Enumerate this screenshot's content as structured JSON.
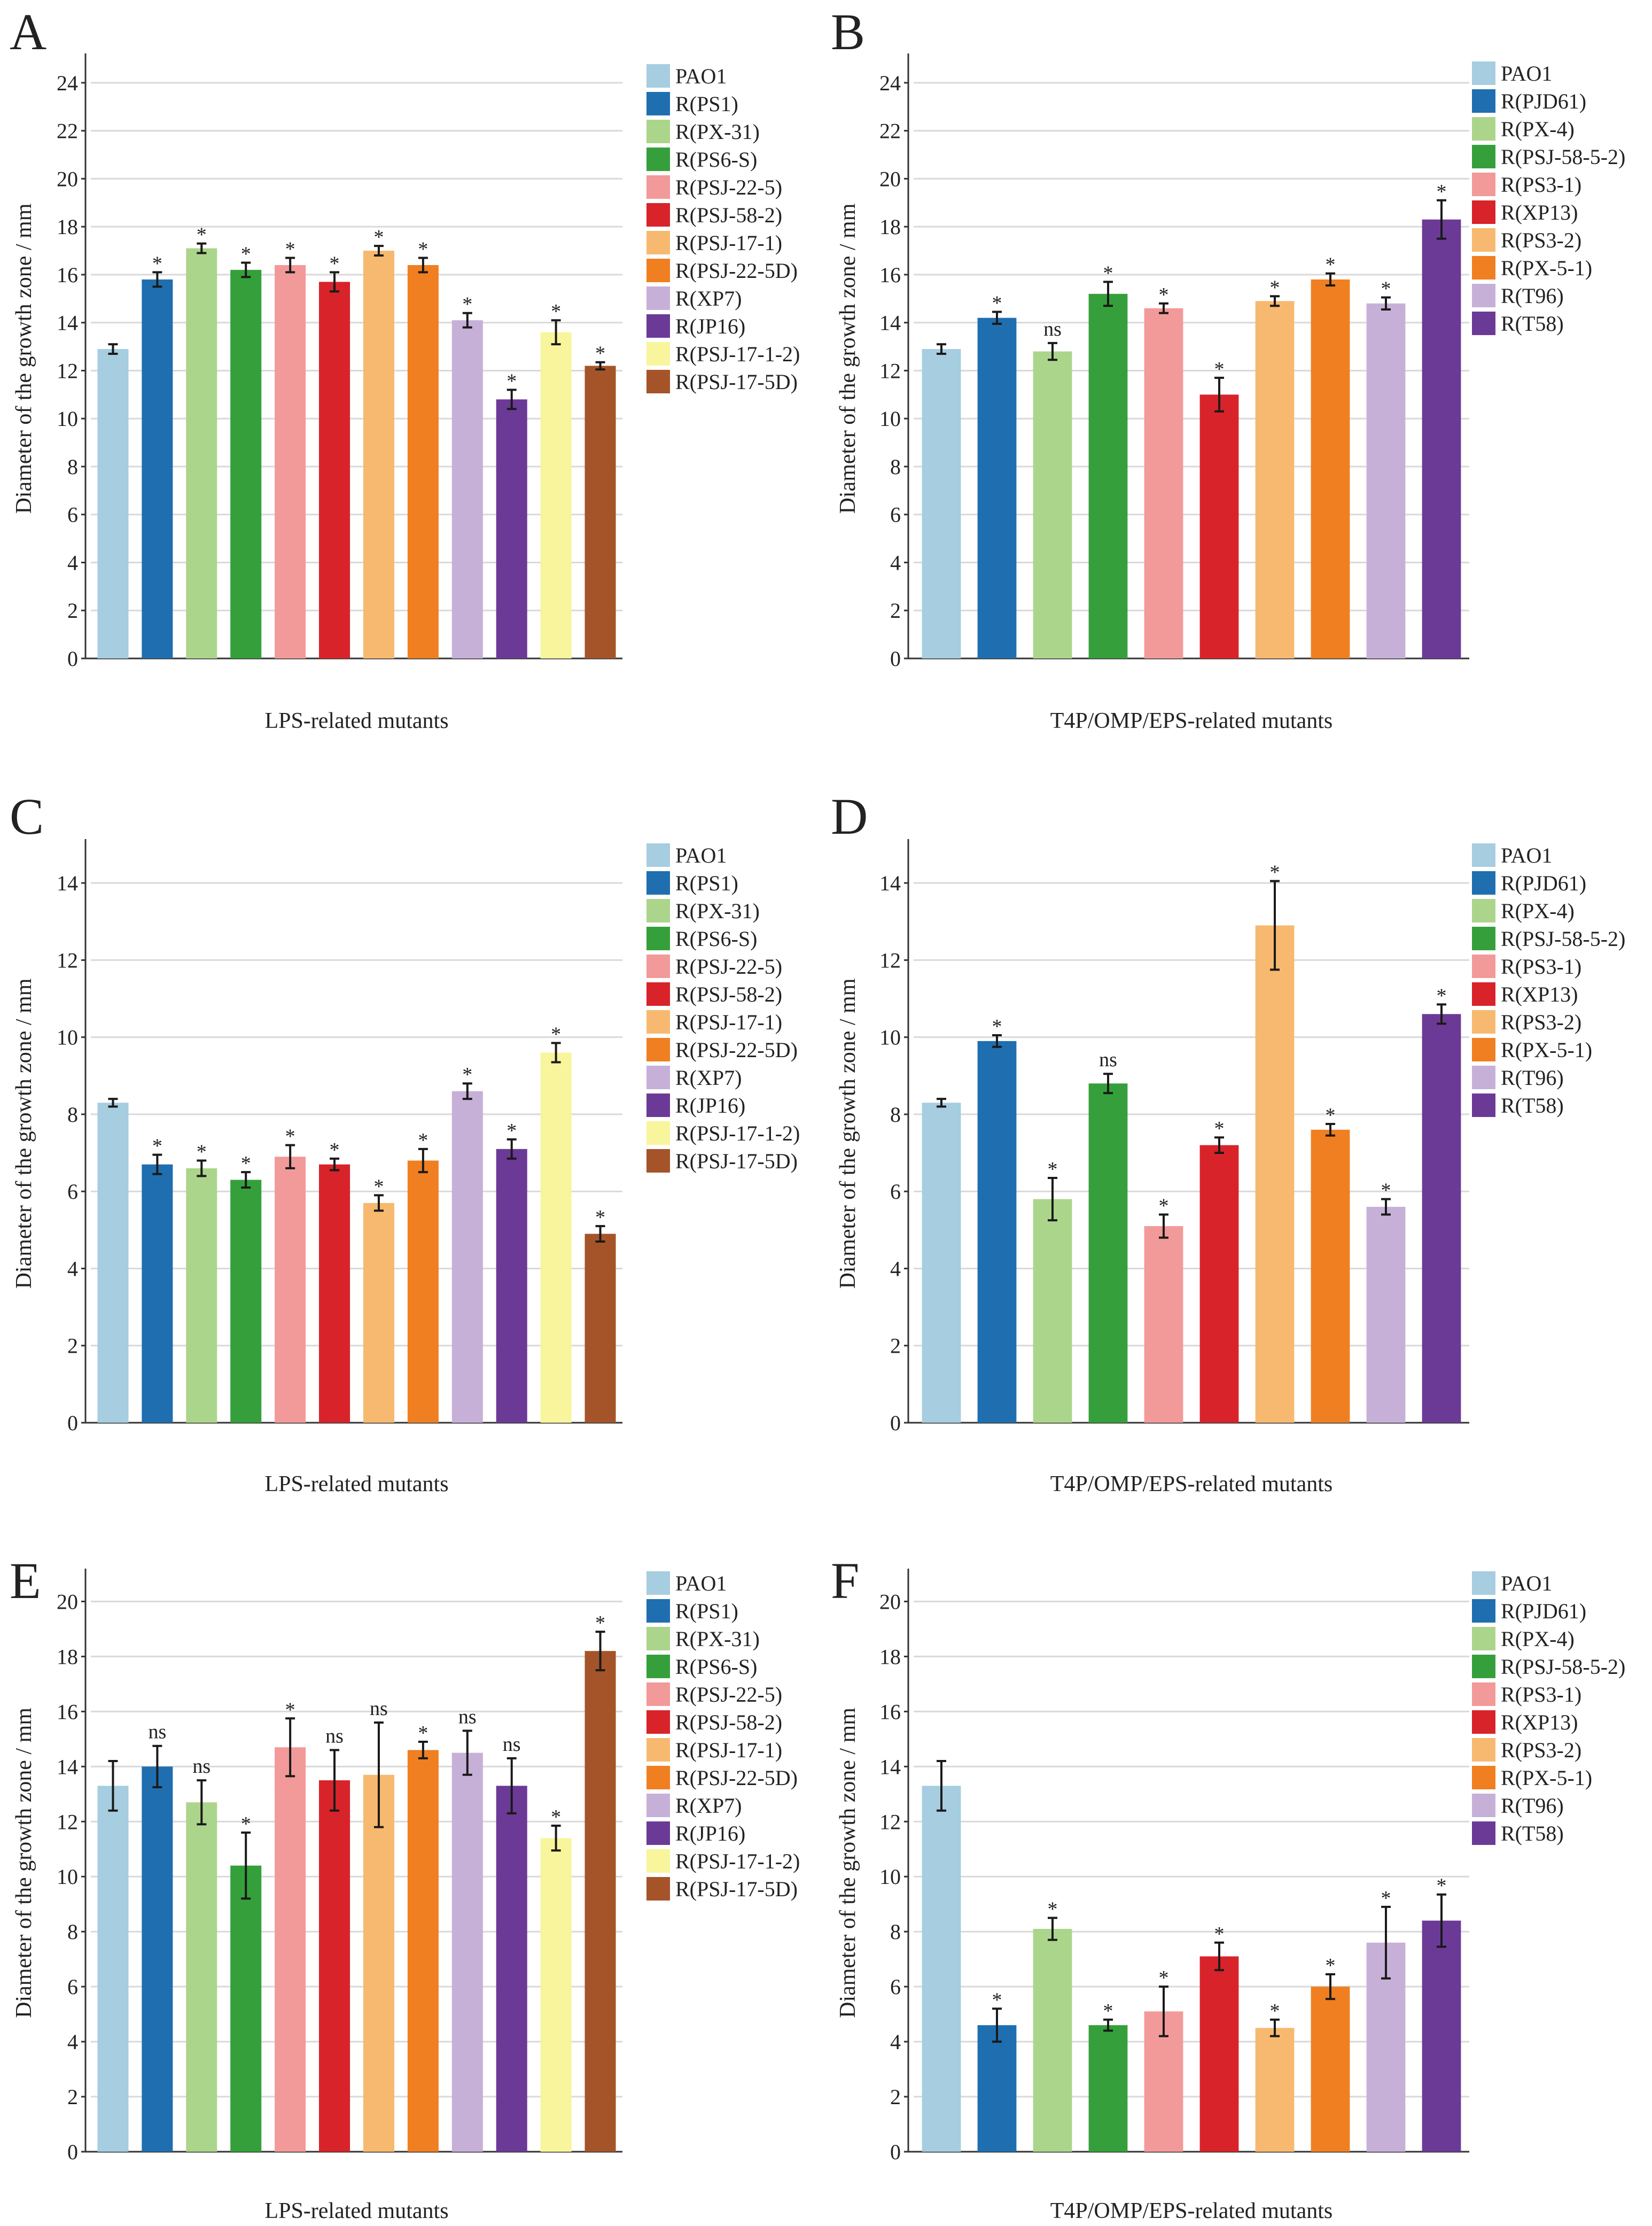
{
  "series_names": {
    "lps": [
      "PAO1",
      "R(PS1)",
      "R(PX-31)",
      "R(PS6-S)",
      "R(PSJ-22-5)",
      "R(PSJ-58-2)",
      "R(PSJ-17-1)",
      "R(PSJ-22-5D)",
      "R(XP7)",
      "R(JP16)",
      "R(PSJ-17-1-2)",
      "R(PSJ-17-5D)"
    ],
    "t4p": [
      "PAO1",
      "R(PJD61)",
      "R(PX-4)",
      "R(PSJ-58-5-2)",
      "R(PS3-1)",
      "R(XP13)",
      "R(PS3-2)",
      "R(PX-5-1)",
      "R(T96)",
      "R(T58)"
    ]
  },
  "colors": {
    "lps": [
      "#a6cde0",
      "#1f6fb0",
      "#acd58c",
      "#35a03b",
      "#f29a99",
      "#d8232a",
      "#f7b96f",
      "#f07f21",
      "#c7b0d8",
      "#6b3a96",
      "#f8f59c",
      "#a5542a"
    ],
    "t4p": [
      "#a6cde0",
      "#1f6fb0",
      "#acd58c",
      "#35a03b",
      "#f29a99",
      "#d8232a",
      "#f7b96f",
      "#f07f21",
      "#c7b0d8",
      "#6b3a96"
    ]
  },
  "chart_data": [
    {
      "type": "bar",
      "panel": "A",
      "group": "lps",
      "title": "",
      "xlabel": "LPS-related mutants",
      "ylabel": "Diameter of the growth zone / mm",
      "ylim": [
        0,
        25
      ],
      "yticks": [
        0,
        2,
        4,
        6,
        8,
        10,
        12,
        14,
        16,
        18,
        20,
        22,
        24
      ],
      "categories": [
        "PAO1",
        "R(PS1)",
        "R(PX-31)",
        "R(PS6-S)",
        "R(PSJ-22-5)",
        "R(PSJ-58-2)",
        "R(PSJ-17-1)",
        "R(PSJ-22-5D)",
        "R(XP7)",
        "R(JP16)",
        "R(PSJ-17-1-2)",
        "R(PSJ-17-5D)"
      ],
      "values": [
        12.9,
        15.8,
        17.1,
        16.2,
        16.4,
        15.7,
        17.0,
        16.4,
        14.1,
        10.8,
        13.6,
        12.2
      ],
      "errors": [
        0.2,
        0.3,
        0.2,
        0.3,
        0.3,
        0.4,
        0.2,
        0.3,
        0.3,
        0.4,
        0.5,
        0.15
      ],
      "significance": [
        "",
        "*",
        "*",
        "*",
        "*",
        "*",
        "*",
        "*",
        "*",
        "*",
        "*",
        "*"
      ]
    },
    {
      "type": "bar",
      "panel": "B",
      "group": "t4p",
      "title": "",
      "xlabel": "T4P/OMP/EPS-related mutants",
      "ylabel": "Diameter of the growth zone / mm",
      "ylim": [
        0,
        25
      ],
      "yticks": [
        0,
        2,
        4,
        6,
        8,
        10,
        12,
        14,
        16,
        18,
        20,
        22,
        24
      ],
      "categories": [
        "PAO1",
        "R(PJD61)",
        "R(PX-4)",
        "R(PSJ-58-5-2)",
        "R(PS3-1)",
        "R(XP13)",
        "R(PS3-2)",
        "R(PX-5-1)",
        "R(T96)",
        "R(T58)"
      ],
      "values": [
        12.9,
        14.2,
        12.8,
        15.2,
        14.6,
        11.0,
        14.9,
        15.8,
        14.8,
        18.3
      ],
      "errors": [
        0.2,
        0.25,
        0.35,
        0.5,
        0.2,
        0.7,
        0.2,
        0.25,
        0.25,
        0.8
      ],
      "significance": [
        "",
        "*",
        "ns",
        "*",
        "*",
        "*",
        "*",
        "*",
        "*",
        "*"
      ]
    },
    {
      "type": "bar",
      "panel": "C",
      "group": "lps",
      "title": "",
      "xlabel": "LPS-related mutants",
      "ylabel": "Diameter of the growth zone / mm",
      "ylim": [
        0,
        15
      ],
      "yticks": [
        0,
        2,
        4,
        6,
        8,
        10,
        12,
        14
      ],
      "categories": [
        "PAO1",
        "R(PS1)",
        "R(PX-31)",
        "R(PS6-S)",
        "R(PSJ-22-5)",
        "R(PSJ-58-2)",
        "R(PSJ-17-1)",
        "R(PSJ-22-5D)",
        "R(XP7)",
        "R(JP16)",
        "R(PSJ-17-1-2)",
        "R(PSJ-17-5D)"
      ],
      "values": [
        8.3,
        6.7,
        6.6,
        6.3,
        6.9,
        6.7,
        5.7,
        6.8,
        8.6,
        7.1,
        9.6,
        4.9
      ],
      "errors": [
        0.1,
        0.25,
        0.2,
        0.2,
        0.3,
        0.15,
        0.2,
        0.3,
        0.2,
        0.25,
        0.25,
        0.2
      ],
      "significance": [
        "",
        "*",
        "*",
        "*",
        "*",
        "*",
        "*",
        "*",
        "*",
        "*",
        "*",
        "*"
      ]
    },
    {
      "type": "bar",
      "panel": "D",
      "group": "t4p",
      "title": "",
      "xlabel": "T4P/OMP/EPS-related mutants",
      "ylabel": "Diameter of the growth zone / mm",
      "ylim": [
        0,
        15
      ],
      "yticks": [
        0,
        2,
        4,
        6,
        8,
        10,
        12,
        14
      ],
      "categories": [
        "PAO1",
        "R(PJD61)",
        "R(PX-4)",
        "R(PSJ-58-5-2)",
        "R(PS3-1)",
        "R(XP13)",
        "R(PS3-2)",
        "R(PX-5-1)",
        "R(T96)",
        "R(T58)"
      ],
      "values": [
        8.3,
        9.9,
        5.8,
        8.8,
        5.1,
        7.2,
        12.9,
        7.6,
        5.6,
        10.6
      ],
      "errors": [
        0.1,
        0.15,
        0.55,
        0.25,
        0.3,
        0.2,
        1.15,
        0.15,
        0.2,
        0.25
      ],
      "significance": [
        "",
        "*",
        "*",
        "ns",
        "*",
        "*",
        "*",
        "*",
        "*",
        "*"
      ]
    },
    {
      "type": "bar",
      "panel": "E",
      "group": "lps",
      "title": "",
      "xlabel": "LPS-related mutants",
      "ylabel": "Diameter of the growth zone / mm",
      "ylim": [
        0,
        21
      ],
      "yticks": [
        0,
        2,
        4,
        6,
        8,
        10,
        12,
        14,
        16,
        18,
        20
      ],
      "categories": [
        "PAO1",
        "R(PS1)",
        "R(PX-31)",
        "R(PS6-S)",
        "R(PSJ-22-5)",
        "R(PSJ-58-2)",
        "R(PSJ-17-1)",
        "R(PSJ-22-5D)",
        "R(XP7)",
        "R(JP16)",
        "R(PSJ-17-1-2)",
        "R(PSJ-17-5D)"
      ],
      "values": [
        13.3,
        14.0,
        12.7,
        10.4,
        14.7,
        13.5,
        13.7,
        14.6,
        14.5,
        13.3,
        11.4,
        18.2
      ],
      "errors": [
        0.9,
        0.75,
        0.8,
        1.2,
        1.05,
        1.1,
        1.9,
        0.3,
        0.8,
        1.0,
        0.45,
        0.7
      ],
      "significance": [
        "",
        "ns",
        "ns",
        "*",
        "*",
        "ns",
        "ns",
        "*",
        "ns",
        "ns",
        "*",
        "*"
      ]
    },
    {
      "type": "bar",
      "panel": "F",
      "group": "t4p",
      "title": "",
      "xlabel": "T4P/OMP/EPS-related mutants",
      "ylabel": "Diameter of the growth zone / mm",
      "ylim": [
        0,
        21
      ],
      "yticks": [
        0,
        2,
        4,
        6,
        8,
        10,
        12,
        14,
        16,
        18,
        20
      ],
      "categories": [
        "PAO1",
        "R(PJD61)",
        "R(PX-4)",
        "R(PSJ-58-5-2)",
        "R(PS3-1)",
        "R(XP13)",
        "R(PS3-2)",
        "R(PX-5-1)",
        "R(T96)",
        "R(T58)"
      ],
      "values": [
        13.3,
        4.6,
        8.1,
        4.6,
        5.1,
        7.1,
        4.5,
        6.0,
        7.6,
        8.4
      ],
      "errors": [
        0.9,
        0.6,
        0.4,
        0.2,
        0.9,
        0.5,
        0.3,
        0.45,
        1.3,
        0.95
      ],
      "significance": [
        "",
        "*",
        "*",
        "*",
        "*",
        "*",
        "*",
        "*",
        "*",
        "*"
      ]
    }
  ]
}
